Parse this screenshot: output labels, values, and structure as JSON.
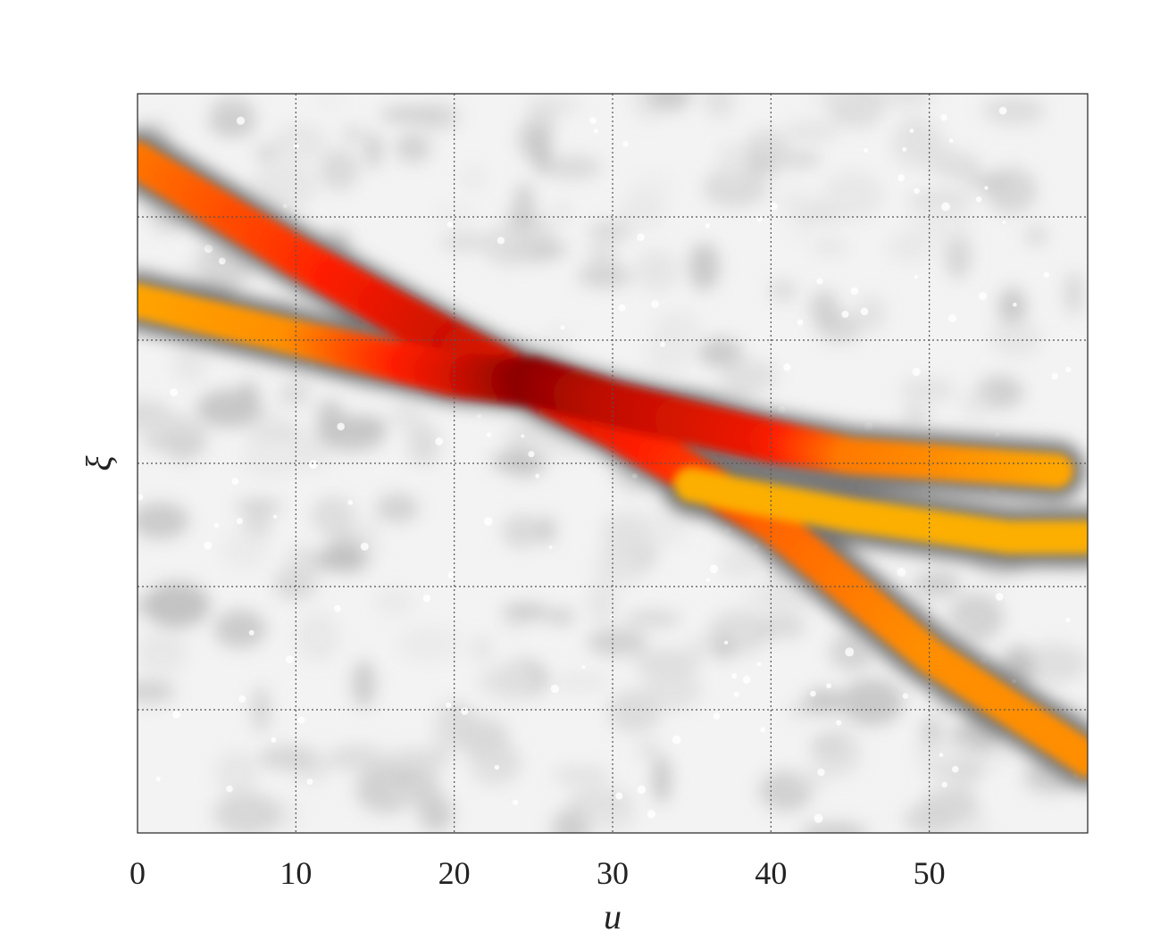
{
  "chart_data": {
    "type": "heatmap",
    "title": "",
    "xlabel": "u",
    "ylabel": "ξ",
    "xlim": [
      0,
      60
    ],
    "x_ticks": [
      0,
      10,
      20,
      30,
      40,
      50
    ],
    "x_tick_labels": [
      "0",
      "10",
      "20",
      "30",
      "40",
      "50"
    ],
    "y_tick_labels": [],
    "grid": true,
    "colormap": [
      "#f5f5f5",
      "#7a7a7a",
      "#e8e800",
      "#ff8c00",
      "#ff0000",
      "#8b0000"
    ],
    "ridges": [
      {
        "name": "",
        "points": [
          [
            0,
            0.91
          ],
          [
            10,
            0.78
          ],
          [
            20,
            0.66
          ],
          [
            30,
            0.55
          ],
          [
            40,
            0.42
          ],
          [
            50,
            0.24
          ],
          [
            60,
            0.1
          ]
        ],
        "intensity": [
          0.45,
          0.6,
          0.8,
          0.7,
          0.5,
          0.4,
          0.4
        ]
      },
      {
        "name": "",
        "points": [
          [
            0,
            0.72
          ],
          [
            10,
            0.67
          ],
          [
            20,
            0.62
          ],
          [
            25,
            0.61
          ],
          [
            30,
            0.58
          ],
          [
            40,
            0.53
          ],
          [
            45,
            0.51
          ],
          [
            58,
            0.49
          ]
        ],
        "intensity": [
          0.35,
          0.4,
          0.75,
          1.0,
          0.85,
          0.7,
          0.45,
          0.35
        ]
      },
      {
        "name": "",
        "points": [
          [
            35,
            0.47
          ],
          [
            45,
            0.43
          ],
          [
            55,
            0.4
          ],
          [
            60,
            0.4
          ]
        ],
        "intensity": [
          0.3,
          0.3,
          0.3,
          0.3
        ]
      }
    ]
  }
}
